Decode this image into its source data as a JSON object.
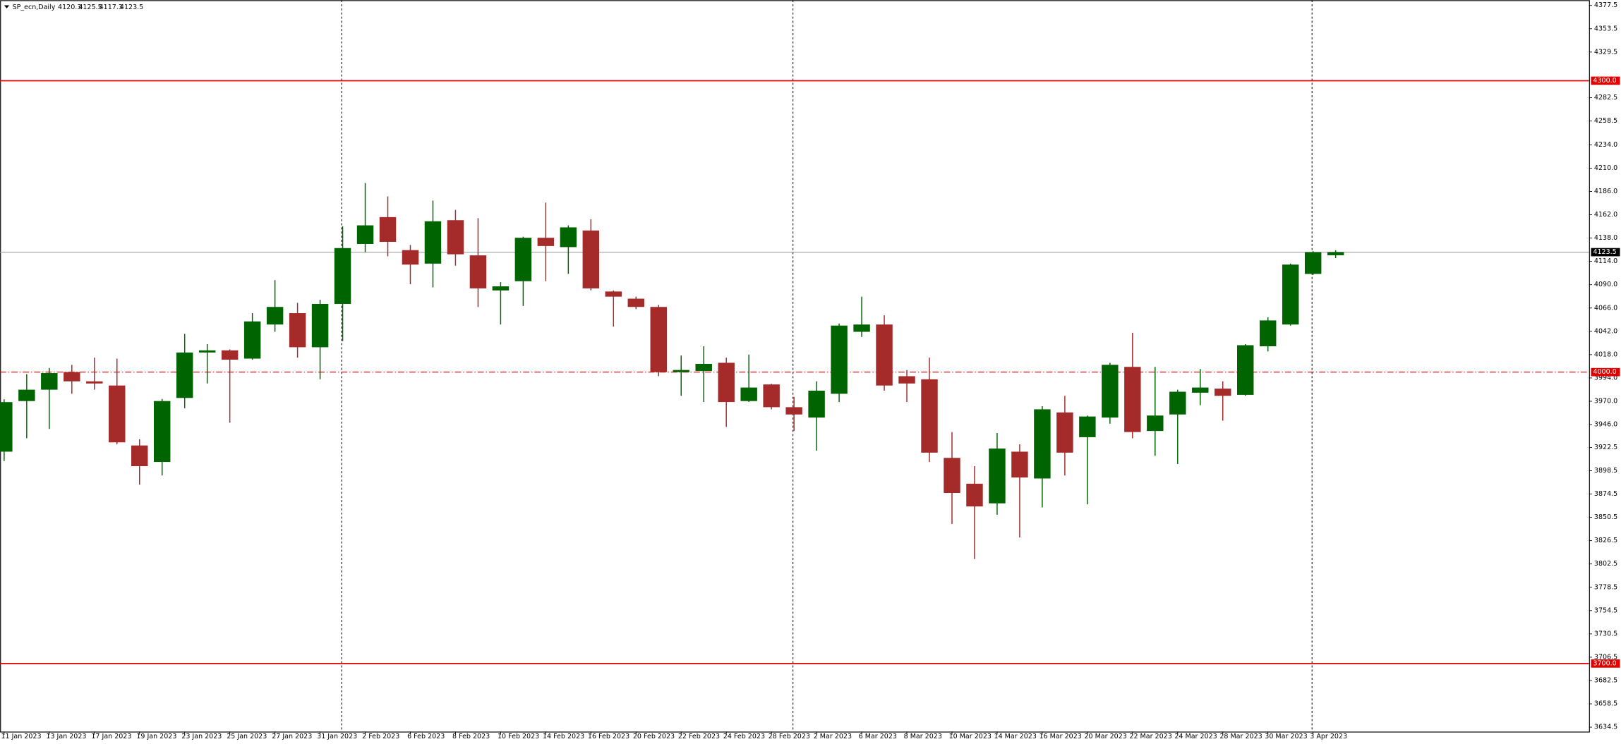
{
  "chart_data": {
    "type": "candlestick",
    "title": "SP_ecn,Daily",
    "categories": [
      "11 Jan 2023",
      null,
      "13 Jan 2023",
      null,
      "17 Jan 2023",
      null,
      "19 Jan 2023",
      null,
      "23 Jan 2023",
      null,
      "25 Jan 2023",
      null,
      "27 Jan 2023",
      null,
      "31 Jan 2023",
      null,
      "2 Feb 2023",
      null,
      "6 Feb 2023",
      null,
      "8 Feb 2023",
      null,
      "10 Feb 2023",
      null,
      "14 Feb 2023",
      null,
      "16 Feb 2023",
      null,
      "20 Feb 2023",
      null,
      "22 Feb 2023",
      null,
      "24 Feb 2023",
      null,
      "28 Feb 2023",
      null,
      "2 Mar 2023",
      null,
      "6 Mar 2023",
      null,
      "8 Mar 2023",
      null,
      "10 Mar 2023",
      null,
      "14 Mar 2023",
      null,
      "16 Mar 2023",
      null,
      "20 Mar 2023",
      null,
      "22 Mar 2023",
      null,
      "24 Mar 2023",
      null,
      "28 Mar 2023",
      null,
      "30 Mar 2023",
      null,
      "3 Apr 2023",
      null
    ],
    "open": [
      3918.1,
      3970.2,
      3981.9,
      4000.0,
      3990.5,
      3986.2,
      3924.5,
      3907.5,
      3973.4,
      4020.2,
      4022.4,
      4013.9,
      4049.0,
      4060.7,
      4025.6,
      4070.2,
      4131.9,
      4159.6,
      4125.6,
      4111.7,
      4156.4,
      4120.2,
      4084.1,
      4093.6,
      4138.3,
      4128.7,
      4145.8,
      4083.0,
      4075.6,
      4067.1,
      4000.0,
      4001.1,
      4009.6,
      3970.2,
      3987.3,
      3963.9,
      3953.2,
      3977.7,
      4041.5,
      4049.0,
      3995.8,
      3992.6,
      3911.7,
      3885.1,
      3864.9,
      3918.1,
      3890.5,
      3958.5,
      3933.0,
      3953.2,
      4005.4,
      3939.4,
      3956.4,
      3978.8,
      3983.0,
      3976.6,
      4026.6,
      4049.0,
      4101.1,
      4120.3
    ],
    "high": [
      3972.0,
      3997.9,
      4004.3,
      4007.5,
      4014.9,
      4013.9,
      3930.9,
      3972.4,
      4039.4,
      4028.8,
      4023.4,
      4060.7,
      4094.7,
      4071.3,
      4074.5,
      4150.0,
      4194.7,
      4180.9,
      4130.9,
      4176.6,
      4167.0,
      4158.5,
      4092.6,
      4139.4,
      4174.5,
      4151.1,
      4157.5,
      4084.1,
      4077.7,
      4069.2,
      4017.1,
      4026.6,
      4014.9,
      4018.1,
      3988.0,
      3974.5,
      3990.5,
      4050.0,
      4077.7,
      4058.5,
      4002.2,
      4014.9,
      3938.3,
      3903.2,
      3937.3,
      3925.6,
      3964.9,
      3975.6,
      3955.3,
      4009.6,
      4040.5,
      4005.4,
      3981.9,
      4003.2,
      3990.5,
      4028.8,
      4056.4,
      4111.7,
      4124.5,
      4125.5
    ],
    "low": [
      3908.5,
      3931.9,
      3941.5,
      3977.7,
      3981.9,
      3925.6,
      3884.1,
      3893.6,
      3962.8,
      3988.3,
      3947.9,
      4012.8,
      4041.5,
      4014.9,
      3992.6,
      4032.0,
      4123.4,
      4119.2,
      4090.5,
      4087.2,
      4109.6,
      4067.0,
      4049.0,
      4068.1,
      4093.6,
      4101.1,
      4084.1,
      4046.8,
      4064.9,
      3995.8,
      3975.6,
      3969.2,
      3943.6,
      3969.2,
      3961.7,
      3939.4,
      3919.2,
      3969.2,
      4036.2,
      3980.9,
      3969.2,
      3907.5,
      3843.7,
      3807.5,
      3853.2,
      3829.8,
      3860.7,
      3893.6,
      3863.9,
      3946.9,
      3931.9,
      3913.9,
      3905.4,
      3966.0,
      3950.0,
      3975.6,
      4021.3,
      4047.9,
      4100.1,
      4117.3
    ],
    "close": [
      3969.1,
      3981.9,
      3999.0,
      3990.5,
      3988.3,
      3927.7,
      3903.2,
      3970.2,
      4020.2,
      4022.4,
      4012.8,
      4052.2,
      4067.1,
      4025.6,
      4070.2,
      4127.7,
      4151.1,
      4134.1,
      4110.7,
      4155.3,
      4121.3,
      4086.2,
      4088.3,
      4138.3,
      4129.8,
      4149.0,
      4086.2,
      4077.7,
      4067.1,
      4000.0,
      4002.2,
      4008.5,
      3969.2,
      3984.1,
      3963.9,
      3956.4,
      3980.9,
      4047.9,
      4049.0,
      3986.2,
      3988.3,
      3917.1,
      3875.6,
      3861.7,
      3921.3,
      3891.5,
      3961.7,
      3917.1,
      3954.3,
      4007.5,
      3938.3,
      3955.3,
      3979.8,
      3984.1,
      3975.6,
      4027.7,
      4053.2,
      4110.7,
      4123.4,
      4123.5
    ],
    "up_color": "#006400",
    "down_color": "#a52a2a",
    "ylim": [
      3630,
      4383
    ],
    "yticks": [
      4377.5,
      4353.5,
      4329.5,
      4282.5,
      4258.5,
      {
        "value": 4234,
        "label": "4234.0"
      },
      {
        "value": 4210,
        "label": "4210.0"
      },
      {
        "value": 4186,
        "label": "4186.0"
      },
      {
        "value": 4162,
        "label": "4162.0"
      },
      {
        "value": 4138,
        "label": "4138.0"
      },
      {
        "value": 4114,
        "label": "4114.0"
      },
      {
        "value": 4090,
        "label": "4090.0"
      },
      {
        "value": 4066,
        "label": "4066.0"
      },
      {
        "value": 4042,
        "label": "4042.0"
      },
      {
        "value": 4018,
        "label": "4018.0"
      },
      {
        "value": 3994,
        "label": "3994.0"
      },
      {
        "value": 3970,
        "label": "3970.0"
      },
      {
        "value": 3946,
        "label": "3946.0"
      },
      3922.5,
      3898.5,
      3874.5,
      3850.5,
      3826.5,
      3802.5,
      3778.5,
      3754.5,
      3730.5,
      3706.5,
      3682.5,
      3658.5,
      3634.5
    ],
    "levels": [
      {
        "value": 4300,
        "label": "4300.0",
        "style": "solid",
        "color": "#e00000"
      },
      {
        "value": 4000,
        "label": "4000.0",
        "style": "dashdot",
        "color": "#e00000"
      },
      {
        "value": 3700,
        "label": "3700.0",
        "style": "solid",
        "color": "#e00000"
      }
    ]
  }
}
